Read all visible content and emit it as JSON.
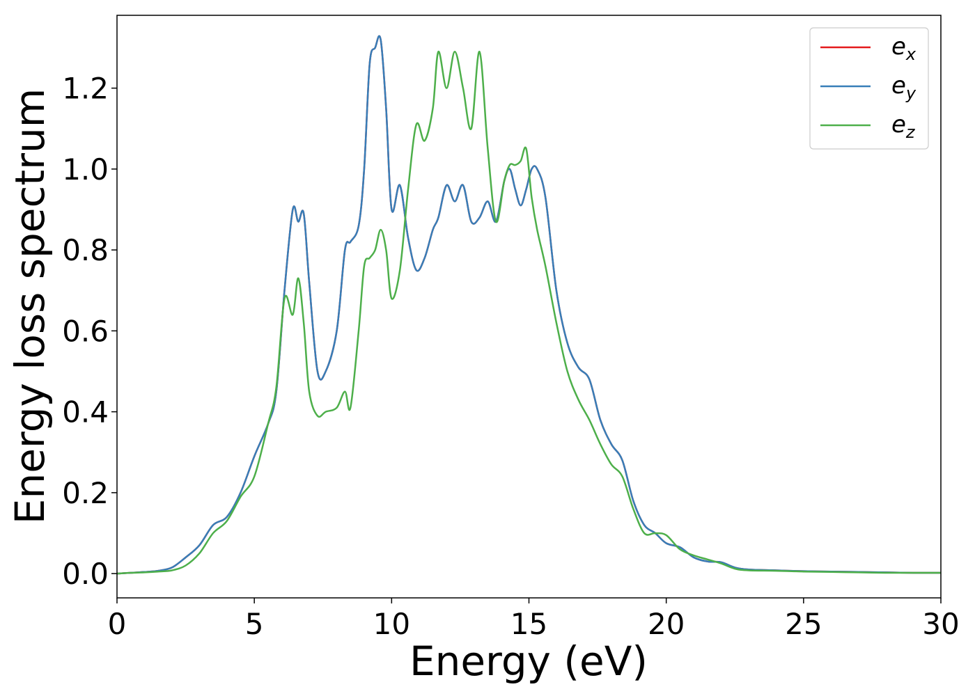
{
  "chart_data": {
    "type": "line",
    "xlabel": "Energy (eV)",
    "ylabel": "Energy loss spectrum",
    "xlim": [
      0,
      30
    ],
    "ylim": [
      -0.06,
      1.38
    ],
    "x_ticks": [
      "0",
      "5",
      "10",
      "15",
      "20",
      "25",
      "30"
    ],
    "y_ticks": [
      "0.0",
      "0.2",
      "0.4",
      "0.6",
      "0.8",
      "1.0",
      "1.2"
    ],
    "x_tick_values": [
      0,
      5,
      10,
      15,
      20,
      25,
      30
    ],
    "y_tick_values": [
      0.0,
      0.2,
      0.4,
      0.6,
      0.8,
      1.0,
      1.2
    ],
    "grid": false,
    "legend_position": "top-right",
    "colors": {
      "ex": "#e41a1c",
      "ey": "#377eb8",
      "ez": "#4daf4a"
    },
    "x": [
      0,
      0.5,
      1.0,
      1.5,
      2.0,
      2.5,
      3.0,
      3.5,
      4.0,
      4.5,
      5.0,
      5.5,
      5.8,
      6.1,
      6.4,
      6.6,
      6.8,
      7.0,
      7.3,
      7.6,
      8.0,
      8.3,
      8.5,
      8.8,
      9.0,
      9.2,
      9.4,
      9.6,
      9.8,
      10.0,
      10.3,
      10.6,
      10.9,
      11.2,
      11.5,
      11.7,
      12.0,
      12.3,
      12.6,
      12.9,
      13.2,
      13.5,
      13.8,
      14.1,
      14.3,
      14.5,
      14.7,
      14.9,
      15.1,
      15.3,
      15.6,
      16.0,
      16.4,
      16.8,
      17.2,
      17.6,
      18.0,
      18.4,
      18.8,
      19.2,
      19.6,
      20.0,
      20.5,
      21.0,
      21.5,
      22.0,
      22.5,
      23.0,
      24.0,
      25.0,
      26.0,
      27.0,
      28.0,
      29.0,
      30.0
    ],
    "series": [
      {
        "name": "e_x",
        "label_base": "e",
        "label_sub": "x",
        "color_key": "ex",
        "values": [
          0.0,
          0.002,
          0.004,
          0.007,
          0.015,
          0.04,
          0.07,
          0.12,
          0.14,
          0.2,
          0.29,
          0.37,
          0.45,
          0.7,
          0.9,
          0.87,
          0.89,
          0.72,
          0.5,
          0.5,
          0.6,
          0.8,
          0.82,
          0.86,
          1.0,
          1.26,
          1.3,
          1.32,
          1.15,
          0.9,
          0.96,
          0.83,
          0.75,
          0.78,
          0.85,
          0.88,
          0.96,
          0.92,
          0.96,
          0.87,
          0.88,
          0.92,
          0.87,
          0.97,
          1.0,
          0.95,
          0.91,
          0.95,
          1.0,
          1.0,
          0.93,
          0.7,
          0.57,
          0.51,
          0.48,
          0.38,
          0.32,
          0.28,
          0.18,
          0.12,
          0.1,
          0.075,
          0.065,
          0.04,
          0.03,
          0.028,
          0.015,
          0.01,
          0.008,
          0.006,
          0.005,
          0.004,
          0.003,
          0.002,
          0.002
        ]
      },
      {
        "name": "e_y",
        "label_base": "e",
        "label_sub": "y",
        "color_key": "ey",
        "values": [
          0.0,
          0.002,
          0.004,
          0.007,
          0.015,
          0.04,
          0.07,
          0.12,
          0.14,
          0.2,
          0.29,
          0.37,
          0.45,
          0.7,
          0.9,
          0.87,
          0.89,
          0.72,
          0.5,
          0.5,
          0.6,
          0.8,
          0.82,
          0.86,
          1.0,
          1.26,
          1.3,
          1.32,
          1.15,
          0.9,
          0.96,
          0.83,
          0.75,
          0.78,
          0.85,
          0.88,
          0.96,
          0.92,
          0.96,
          0.87,
          0.88,
          0.92,
          0.87,
          0.97,
          1.0,
          0.95,
          0.91,
          0.95,
          1.0,
          1.0,
          0.93,
          0.7,
          0.57,
          0.51,
          0.48,
          0.38,
          0.32,
          0.28,
          0.18,
          0.12,
          0.1,
          0.075,
          0.065,
          0.04,
          0.03,
          0.028,
          0.015,
          0.01,
          0.008,
          0.006,
          0.005,
          0.004,
          0.003,
          0.002,
          0.002
        ]
      },
      {
        "name": "e_z",
        "label_base": "e",
        "label_sub": "z",
        "color_key": "ez",
        "values": [
          0.0,
          0.002,
          0.003,
          0.005,
          0.008,
          0.02,
          0.05,
          0.1,
          0.13,
          0.19,
          0.24,
          0.37,
          0.46,
          0.68,
          0.64,
          0.73,
          0.62,
          0.45,
          0.39,
          0.4,
          0.41,
          0.45,
          0.41,
          0.6,
          0.76,
          0.78,
          0.8,
          0.85,
          0.8,
          0.68,
          0.75,
          0.95,
          1.11,
          1.07,
          1.15,
          1.29,
          1.2,
          1.29,
          1.2,
          1.1,
          1.29,
          1.05,
          0.87,
          0.97,
          1.01,
          1.01,
          1.02,
          1.05,
          0.93,
          0.85,
          0.76,
          0.62,
          0.5,
          0.43,
          0.38,
          0.32,
          0.27,
          0.24,
          0.16,
          0.1,
          0.1,
          0.095,
          0.06,
          0.045,
          0.035,
          0.025,
          0.012,
          0.008,
          0.007,
          0.005,
          0.004,
          0.003,
          0.002,
          0.002,
          0.002
        ]
      }
    ]
  }
}
